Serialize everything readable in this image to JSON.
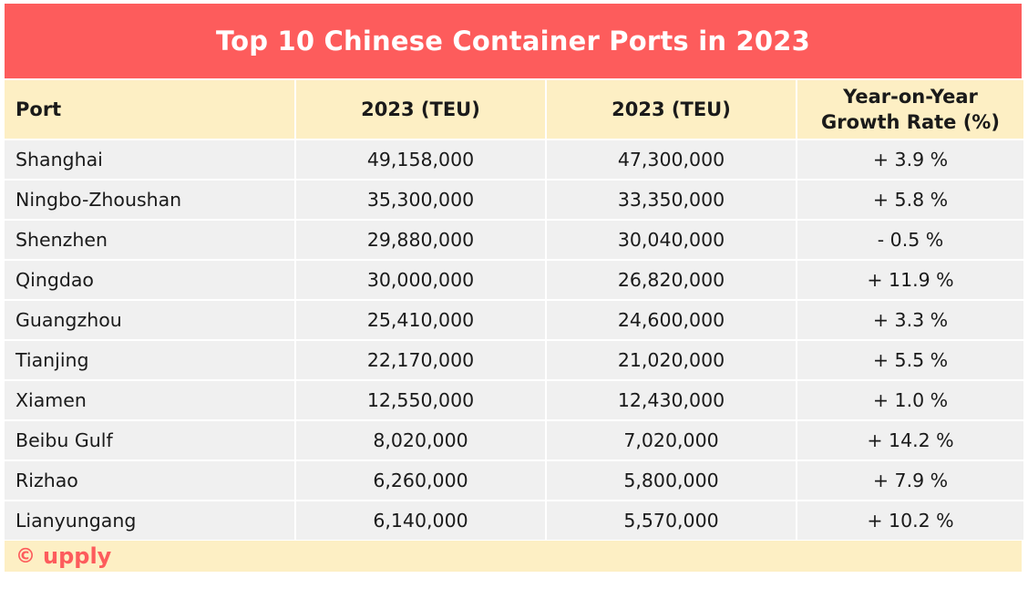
{
  "title": "Top 10 Chinese Container Ports in 2023",
  "headers": [
    "Port",
    "2023 (TEU)",
    "2023 (TEU)",
    "Year-on-Year",
    "Growth Rate (%)"
  ],
  "rows": [
    {
      "port": "Shanghai",
      "teu_a": "49,158,000",
      "teu_b": "47,300,000",
      "growth": "+ 3.9 %"
    },
    {
      "port": "Ningbo-Zhoushan",
      "teu_a": "35,300,000",
      "teu_b": "33,350,000",
      "growth": "+ 5.8 %"
    },
    {
      "port": "Shenzhen",
      "teu_a": "29,880,000",
      "teu_b": "30,040,000",
      "growth": "- 0.5 %"
    },
    {
      "port": "Qingdao",
      "teu_a": "30,000,000",
      "teu_b": "26,820,000",
      "growth": "+ 11.9 %"
    },
    {
      "port": "Guangzhou",
      "teu_a": "25,410,000",
      "teu_b": "24,600,000",
      "growth": "+ 3.3 %"
    },
    {
      "port": "Tianjing",
      "teu_a": "22,170,000",
      "teu_b": "21,020,000",
      "growth": "+ 5.5 %"
    },
    {
      "port": "Xiamen",
      "teu_a": "12,550,000",
      "teu_b": "12,430,000",
      "growth": "+ 1.0 %"
    },
    {
      "port": "Beibu Gulf",
      "teu_a": "8,020,000",
      "teu_b": "7,020,000",
      "growth": "+ 14.2 %"
    },
    {
      "port": "Rizhao",
      "teu_a": "6,260,000",
      "teu_b": "5,800,000",
      "growth": "+ 7.9 %"
    },
    {
      "port": "Lianyungang",
      "teu_a": "6,140,000",
      "teu_b": "5,570,000",
      "growth": "+ 10.2 %"
    }
  ],
  "footer": {
    "copyright_symbol": "©",
    "brand": "upply"
  },
  "colors": {
    "title_bg": "#fd5c5c",
    "header_bg": "#fdefc4",
    "row_bg": "#f0f0f0",
    "brand": "#fd5c5c"
  },
  "chart_data": {
    "type": "table",
    "title": "Top 10 Chinese Container Ports in 2023",
    "columns": [
      "Port",
      "2023 (TEU)",
      "2023 (TEU)",
      "Year-on-Year Growth Rate (%)"
    ],
    "categories": [
      "Shanghai",
      "Ningbo-Zhoushan",
      "Shenzhen",
      "Qingdao",
      "Guangzhou",
      "Tianjing",
      "Xiamen",
      "Beibu Gulf",
      "Rizhao",
      "Lianyungang"
    ],
    "series": [
      {
        "name": "2023 (TEU)",
        "values": [
          49158000,
          35300000,
          29880000,
          30000000,
          25410000,
          22170000,
          12550000,
          8020000,
          6260000,
          6140000
        ]
      },
      {
        "name": "2023 (TEU)",
        "values": [
          47300000,
          33350000,
          30040000,
          26820000,
          24600000,
          21020000,
          12430000,
          7020000,
          5800000,
          5570000
        ]
      },
      {
        "name": "Year-on-Year Growth Rate (%)",
        "values": [
          3.9,
          5.8,
          -0.5,
          11.9,
          3.3,
          5.5,
          1.0,
          14.2,
          7.9,
          10.2
        ]
      }
    ]
  }
}
